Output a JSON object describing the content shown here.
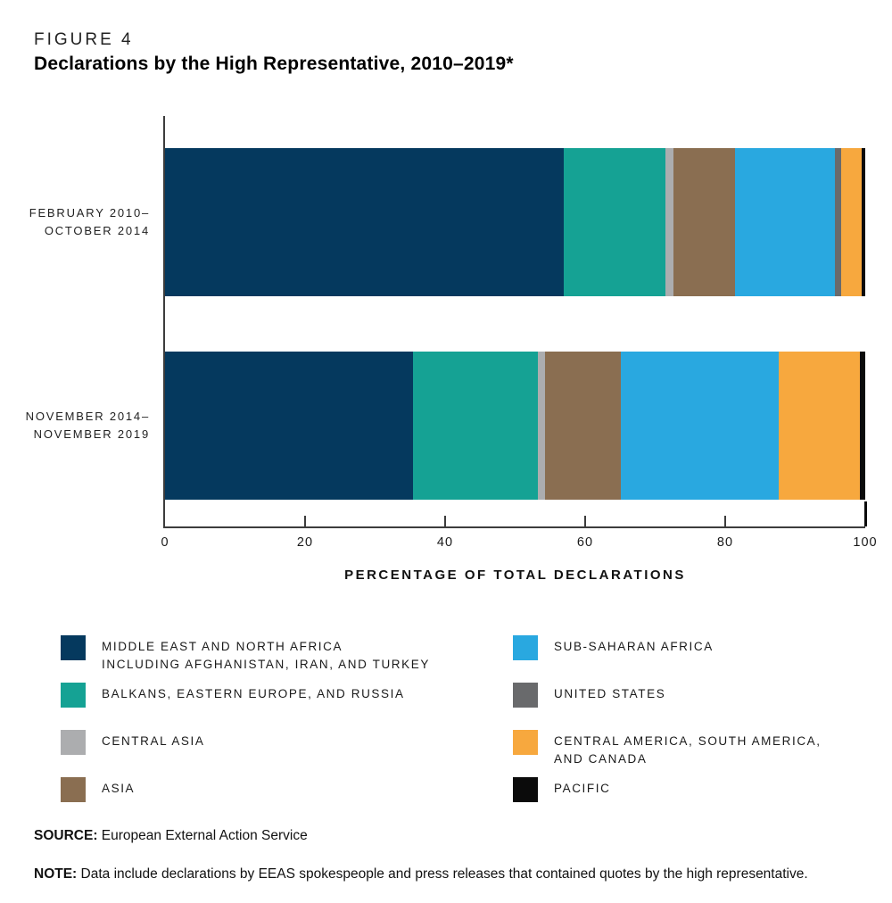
{
  "header": {
    "figure_label": "FIGURE 4",
    "title": "Declarations by the High Representative, 2010–2019*"
  },
  "footer": {
    "source_label": "SOURCE:",
    "source_text": "European External Action Service",
    "note_label": "NOTE:",
    "note_text": "Data include declarations by EEAS spokespeople and press releases that contained quotes by the high representative."
  },
  "chart_data": {
    "type": "bar",
    "orientation": "horizontal",
    "stacked": true,
    "title": "Declarations by the High Representative, 2010–2019*",
    "xlabel": "PERCENTAGE OF TOTAL DECLARATIONS",
    "xlim": [
      0,
      100
    ],
    "x_ticks": [
      0,
      20,
      40,
      60,
      80,
      100
    ],
    "grid": false,
    "legend_position": "bottom-two-columns",
    "axis_color": "#3c3c3c",
    "series": [
      {
        "id": "middle-east-north-africa",
        "color": "#05395E",
        "label_lines": [
          "MIDDLE EAST AND NORTH AFRICA",
          "INCLUDING AFGHANISTAN, IRAN, AND TURKEY"
        ]
      },
      {
        "id": "balkans-eastern-europe-russia",
        "color": "#15A294",
        "label_lines": [
          "BALKANS, EASTERN EUROPE, AND RUSSIA"
        ]
      },
      {
        "id": "central-asia",
        "color": "#ACADAF",
        "label_lines": [
          "CENTRAL ASIA"
        ]
      },
      {
        "id": "asia",
        "color": "#8A6E51",
        "label_lines": [
          "ASIA"
        ]
      },
      {
        "id": "sub-saharan-africa",
        "color": "#29A8E0",
        "label_lines": [
          "SUB-SAHARAN AFRICA"
        ]
      },
      {
        "id": "united-states",
        "color": "#696A6C",
        "label_lines": [
          "UNITED STATES"
        ]
      },
      {
        "id": "central-america-south-america-canada",
        "color": "#F7A83E",
        "label_lines": [
          "CENTRAL AMERICA, SOUTH AMERICA,",
          "AND CANADA"
        ]
      },
      {
        "id": "pacific",
        "color": "#0B0B0B",
        "label_lines": [
          "PACIFIC"
        ]
      }
    ],
    "rows": [
      {
        "label_lines": [
          "FEBRUARY 2010–",
          "OCTOBER 2014"
        ],
        "values": [
          57.0,
          14.5,
          1.1,
          8.8,
          14.3,
          0.9,
          2.9,
          0.5
        ]
      },
      {
        "label_lines": [
          "NOVEMBER 2014–",
          "NOVEMBER 2019"
        ],
        "values": [
          35.4,
          17.8,
          1.1,
          10.8,
          22.6,
          0,
          11.6,
          0.7
        ]
      }
    ]
  }
}
